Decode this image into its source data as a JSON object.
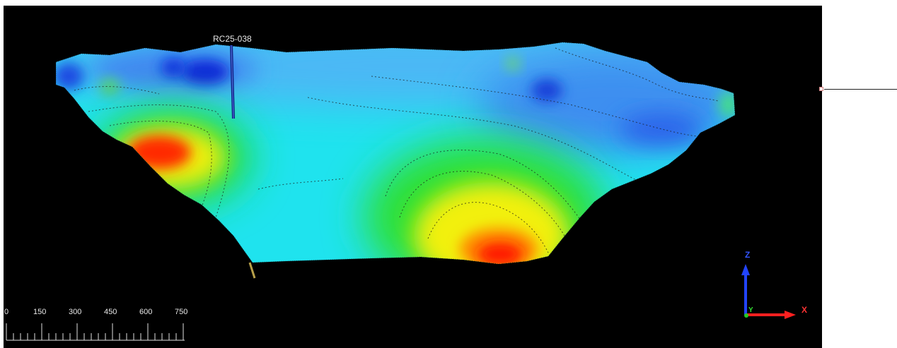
{
  "viewport": {
    "background": "#000000",
    "drillhole_label": "RC25-038",
    "colors": {
      "low": "#0a2bd8",
      "mid_low": "#33c7ff",
      "mid": "#18e0e6",
      "mid_high": "#22dd22",
      "high": "#ffff00",
      "max": "#ff1a00"
    }
  },
  "scale_bar": {
    "tick_labels": [
      "0",
      "150",
      "300",
      "450",
      "600",
      "750"
    ],
    "color": "#e0e0e0"
  },
  "axis_triad": {
    "z_label": "Z",
    "x_label": "X",
    "y_label": "Y",
    "z_color": "#2244ff",
    "x_color": "#ff2020",
    "y_color": "#22cc22"
  },
  "side_panel": {
    "background": "#ffffff",
    "marker_icon": "small-square-icon"
  }
}
